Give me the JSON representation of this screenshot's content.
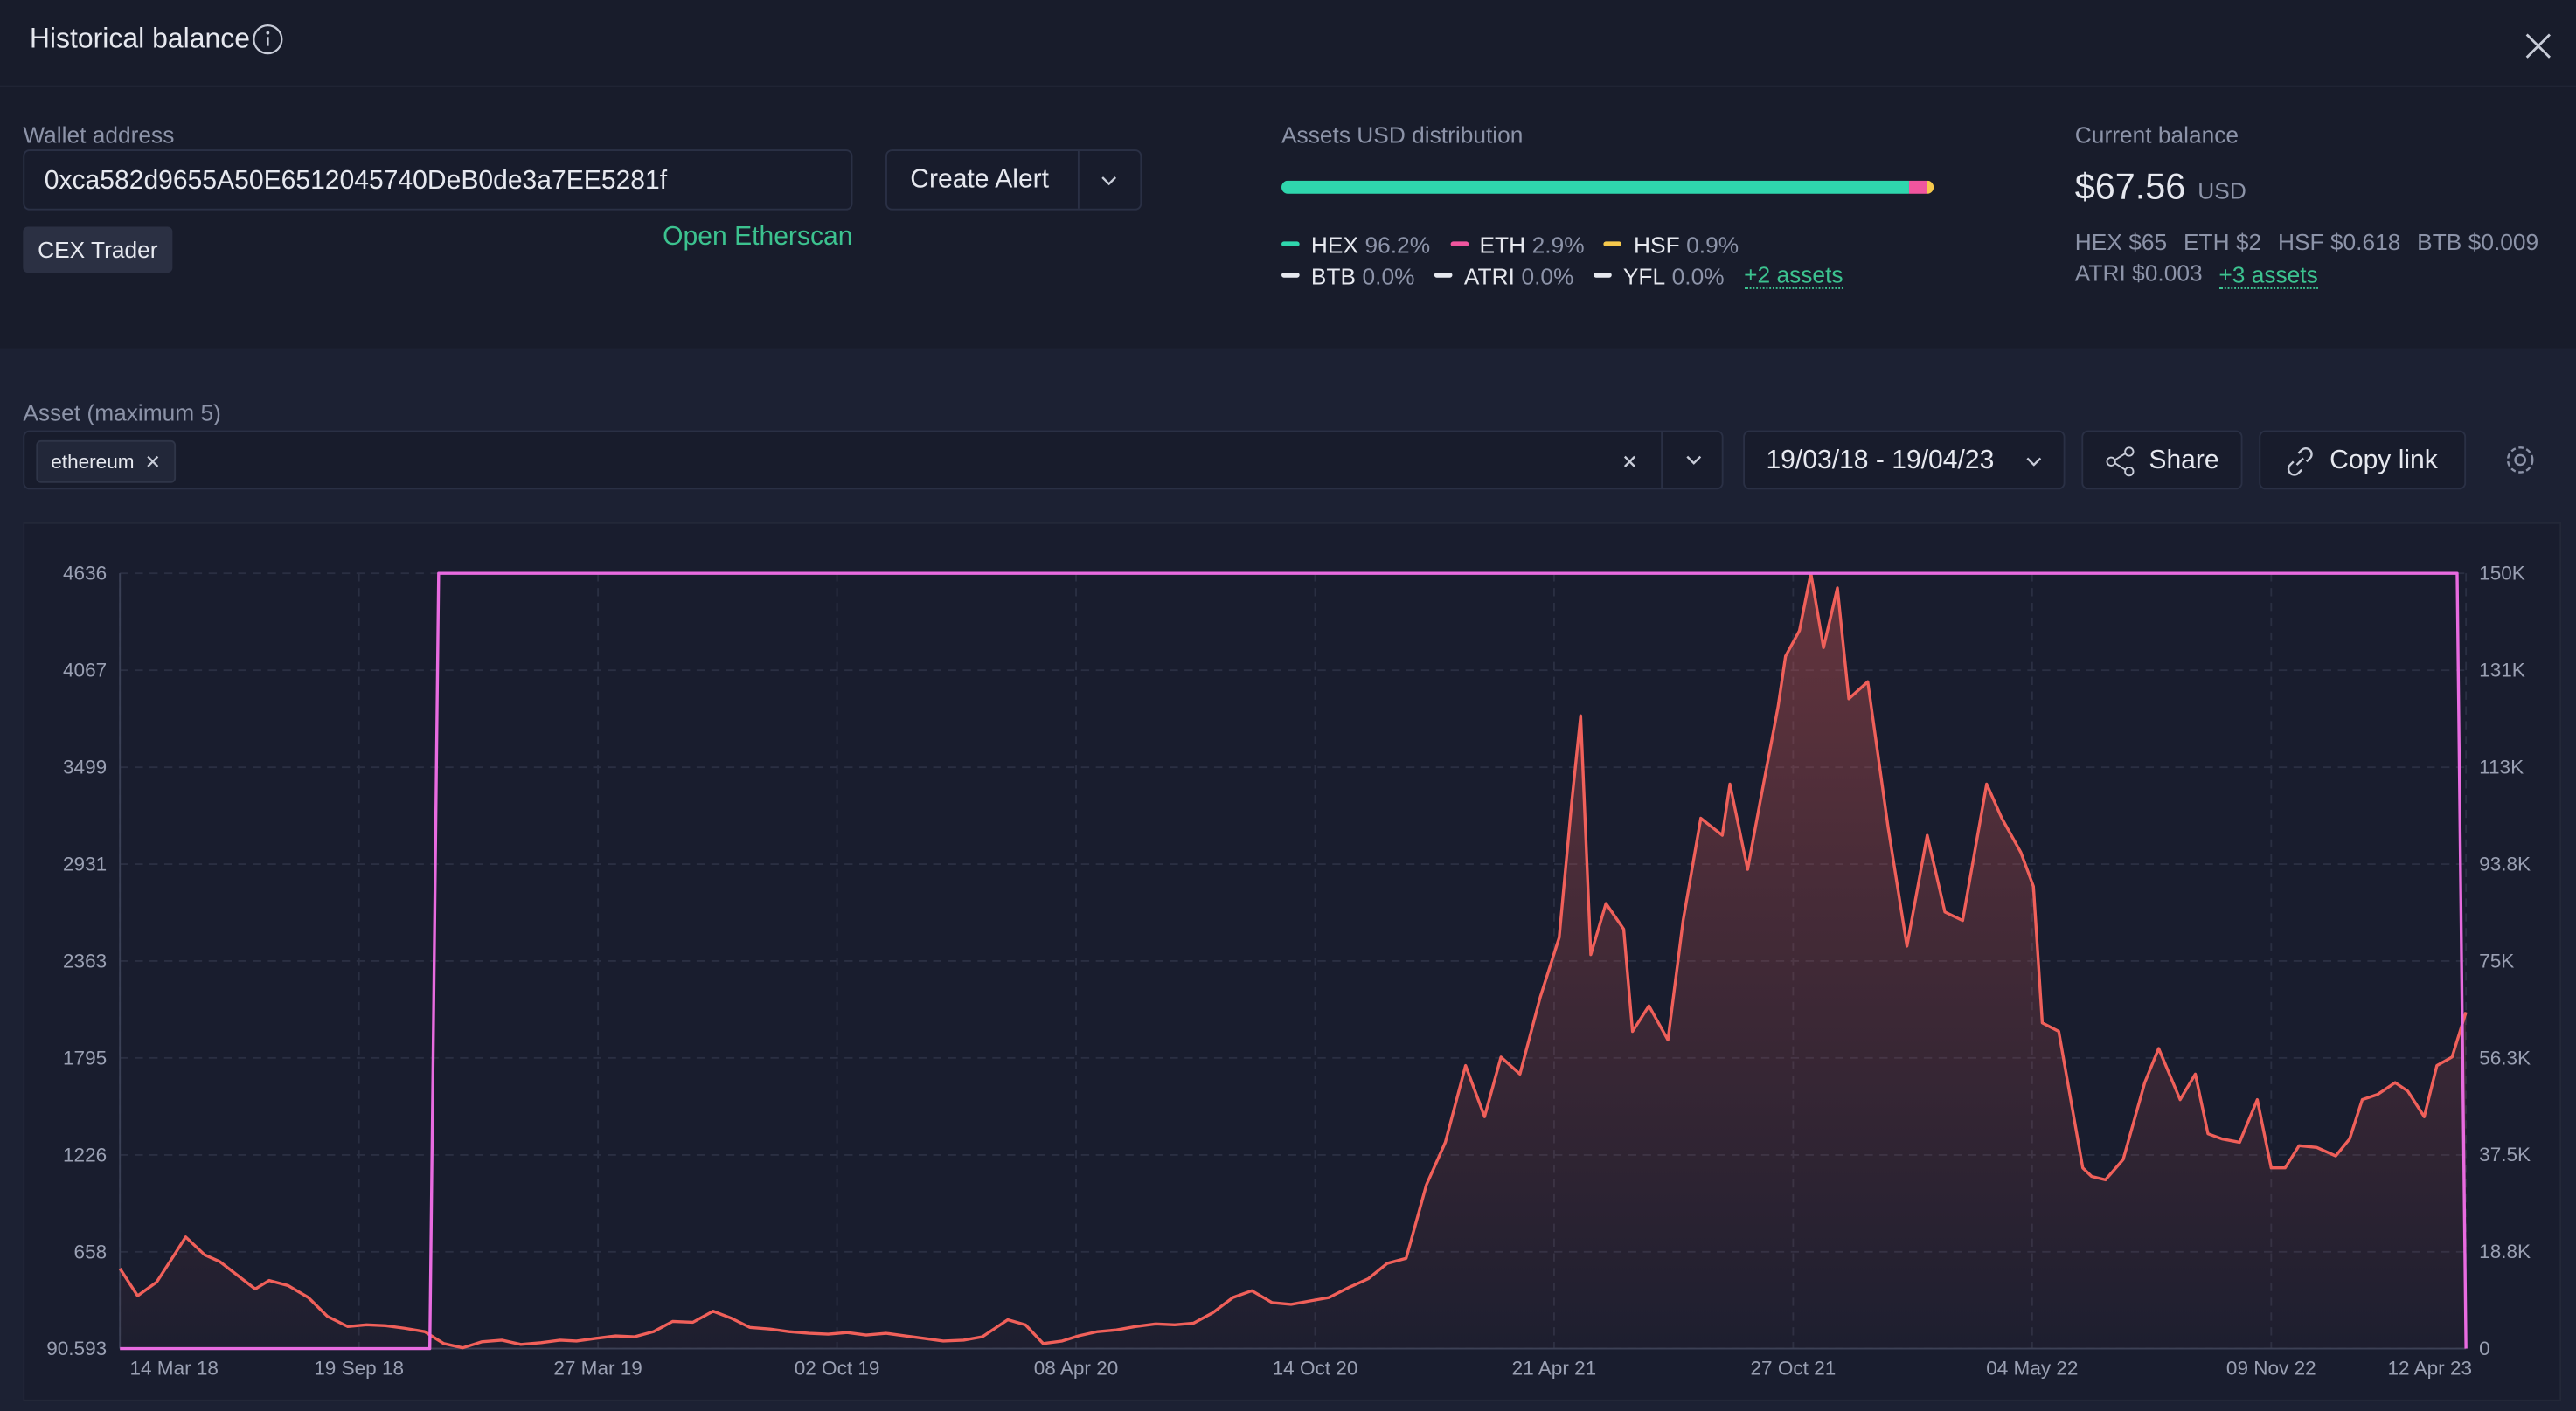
{
  "header": {
    "title": "Historical balance"
  },
  "wallet": {
    "label": "Wallet address",
    "address": "0xca582d9655A50E6512045740DeB0de3a7EE5281f",
    "tag": "CEX Trader",
    "alert_button": "Create Alert",
    "link": "Open Etherscan"
  },
  "distribution": {
    "title": "Assets USD distribution",
    "items": [
      {
        "name": "HEX",
        "value": 96.2,
        "label": "96.2%",
        "color": "#2fd6ad"
      },
      {
        "name": "ETH",
        "value": 2.9,
        "label": "2.9%",
        "color": "#f0559e"
      },
      {
        "name": "HSF",
        "value": 0.9,
        "label": "0.9%",
        "color": "#f5c84c"
      },
      {
        "name": "BTB",
        "value": 0,
        "label": "0.0%",
        "color": "#e6e8ef"
      },
      {
        "name": "ATRI",
        "value": 0,
        "label": "0.0%",
        "color": "#e6e8ef"
      },
      {
        "name": "YFL",
        "value": 0,
        "label": "0.0%",
        "color": "#e6e8ef"
      }
    ],
    "more": "+2 assets"
  },
  "balance": {
    "title": "Current balance",
    "amount": "$67.56",
    "currency": "USD",
    "holdings": [
      {
        "name": "HEX",
        "value": "$65"
      },
      {
        "name": "ETH",
        "value": "$2"
      },
      {
        "name": "HSF",
        "value": "$0.618"
      },
      {
        "name": "BTB",
        "value": "$0.009"
      },
      {
        "name": "ATRI",
        "value": "$0.003"
      }
    ],
    "more": "+3 assets"
  },
  "controls": {
    "asset_label": "Asset (maximum 5)",
    "selected": [
      "ethereum"
    ],
    "date_range": "19/03/18 - 19/04/23",
    "share": "Share",
    "copy_link": "Copy link"
  },
  "chart_data": {
    "type": "line",
    "grid": true,
    "xlim": [
      "2018-03-14",
      "2023-04-12"
    ],
    "xticks": [
      {
        "value": "2018-03-14",
        "label": "14 Mar 18"
      },
      {
        "value": "2018-09-19",
        "label": "19 Sep 18"
      },
      {
        "value": "2019-03-27",
        "label": "27 Mar 19"
      },
      {
        "value": "2019-10-02",
        "label": "02 Oct 19"
      },
      {
        "value": "2020-04-08",
        "label": "08 Apr 20"
      },
      {
        "value": "2020-10-14",
        "label": "14 Oct 20"
      },
      {
        "value": "2021-04-21",
        "label": "21 Apr 21"
      },
      {
        "value": "2021-10-27",
        "label": "27 Oct 21"
      },
      {
        "value": "2022-05-04",
        "label": "04 May 22"
      },
      {
        "value": "2022-11-09",
        "label": "09 Nov 22"
      },
      {
        "value": "2023-04-12",
        "label": "12 Apr 23"
      }
    ],
    "ylim": [
      90.593,
      4636
    ],
    "yticks": [
      90.593,
      658,
      1226,
      1795,
      2363,
      2931,
      3499,
      4067,
      4636
    ],
    "y2lim": [
      0,
      150000
    ],
    "y2ticks": [
      0,
      {
        "value": 18750,
        "label": "18.8K"
      },
      {
        "value": 37500,
        "label": "37.5K"
      },
      {
        "value": 56250,
        "label": "56.3K"
      },
      {
        "value": 75000,
        "label": "75K"
      },
      {
        "value": 93750,
        "label": "93.8K"
      },
      {
        "value": 112500,
        "label": "113K"
      },
      {
        "value": 131250,
        "label": "131K"
      },
      {
        "value": 150000,
        "label": "150K"
      }
    ],
    "series": [
      {
        "color": "#f0605a",
        "area": true,
        "x": [
          "2018-03-14",
          "2018-03-28",
          "2018-04-12",
          "2018-04-26",
          "2018-05-05",
          "2018-05-20",
          "2018-06-01",
          "2018-06-15",
          "2018-06-29",
          "2018-07-10",
          "2018-07-25",
          "2018-08-10",
          "2018-08-25",
          "2018-09-10",
          "2018-09-25",
          "2018-10-10",
          "2018-10-25",
          "2018-11-10",
          "2018-11-25",
          "2018-12-10",
          "2018-12-25",
          "2019-01-10",
          "2019-01-25",
          "2019-02-10",
          "2019-02-25",
          "2019-03-10",
          "2019-03-25",
          "2019-04-10",
          "2019-04-25",
          "2019-05-10",
          "2019-05-25",
          "2019-06-10",
          "2019-06-26",
          "2019-07-10",
          "2019-07-25",
          "2019-08-10",
          "2019-08-25",
          "2019-09-10",
          "2019-09-25",
          "2019-10-10",
          "2019-10-25",
          "2019-11-10",
          "2019-11-25",
          "2019-12-10",
          "2019-12-25",
          "2020-01-10",
          "2020-01-25",
          "2020-02-14",
          "2020-02-28",
          "2020-03-13",
          "2020-03-28",
          "2020-04-10",
          "2020-04-25",
          "2020-05-10",
          "2020-05-25",
          "2020-06-10",
          "2020-06-25",
          "2020-07-10",
          "2020-07-25",
          "2020-08-10",
          "2020-08-25",
          "2020-09-10",
          "2020-09-25",
          "2020-10-10",
          "2020-10-25",
          "2020-11-10",
          "2020-11-25",
          "2020-12-10",
          "2020-12-25",
          "2021-01-10",
          "2021-01-25",
          "2021-02-10",
          "2021-02-25",
          "2021-03-10",
          "2021-03-25",
          "2021-04-10",
          "2021-04-25",
          "2021-05-05",
          "2021-05-12",
          "2021-05-20",
          "2021-06-01",
          "2021-06-15",
          "2021-06-22",
          "2021-07-05",
          "2021-07-20",
          "2021-08-01",
          "2021-08-15",
          "2021-09-01",
          "2021-09-07",
          "2021-09-21",
          "2021-10-01",
          "2021-10-15",
          "2021-10-21",
          "2021-11-01",
          "2021-11-10",
          "2021-11-20",
          "2021-12-01",
          "2021-12-10",
          "2021-12-25",
          "2022-01-10",
          "2022-01-25",
          "2022-02-10",
          "2022-02-24",
          "2022-03-10",
          "2022-03-29",
          "2022-04-10",
          "2022-04-25",
          "2022-05-05",
          "2022-05-12",
          "2022-05-25",
          "2022-06-13",
          "2022-06-20",
          "2022-07-01",
          "2022-07-15",
          "2022-08-01",
          "2022-08-12",
          "2022-08-29",
          "2022-09-10",
          "2022-09-20",
          "2022-10-01",
          "2022-10-15",
          "2022-10-29",
          "2022-11-09",
          "2022-11-20",
          "2022-12-01",
          "2022-12-15",
          "2022-12-30",
          "2023-01-10",
          "2023-01-20",
          "2023-02-01",
          "2023-02-15",
          "2023-02-25",
          "2023-03-10",
          "2023-03-20",
          "2023-04-01",
          "2023-04-12"
        ],
        "values": [
          560,
          400,
          480,
          640,
          745,
          640,
          600,
          520,
          440,
          490,
          460,
          390,
          280,
          220,
          230,
          225,
          210,
          190,
          120,
          95,
          130,
          140,
          115,
          125,
          140,
          135,
          150,
          165,
          160,
          190,
          250,
          245,
          310,
          270,
          215,
          205,
          190,
          180,
          175,
          185,
          170,
          180,
          165,
          150,
          135,
          140,
          160,
          260,
          230,
          120,
          135,
          165,
          190,
          200,
          220,
          235,
          230,
          240,
          300,
          390,
          430,
          360,
          350,
          370,
          390,
          450,
          500,
          590,
          620,
          1050,
          1300,
          1750,
          1450,
          1800,
          1700,
          2150,
          2500,
          3300,
          3800,
          2400,
          2700,
          2550,
          1950,
          2100,
          1900,
          2600,
          3200,
          3100,
          3400,
          2900,
          3300,
          3850,
          4150,
          4300,
          4636,
          4200,
          4550,
          3900,
          4000,
          3150,
          2450,
          3100,
          2650,
          2600,
          3400,
          3200,
          3000,
          2800,
          2000,
          1950,
          1150,
          1100,
          1080,
          1200,
          1650,
          1850,
          1550,
          1700,
          1350,
          1320,
          1300,
          1550,
          1150,
          1150,
          1280,
          1270,
          1220,
          1320,
          1550,
          1580,
          1650,
          1600,
          1450,
          1750,
          1800,
          2063
        ]
      },
      {
        "color": "#e86be0",
        "axis": "y2",
        "x": [
          "2018-03-14",
          "2018-11-14",
          "2018-11-21",
          "2023-04-05",
          "2023-04-12"
        ],
        "values": [
          0,
          0,
          150000,
          150000,
          0
        ]
      }
    ]
  }
}
